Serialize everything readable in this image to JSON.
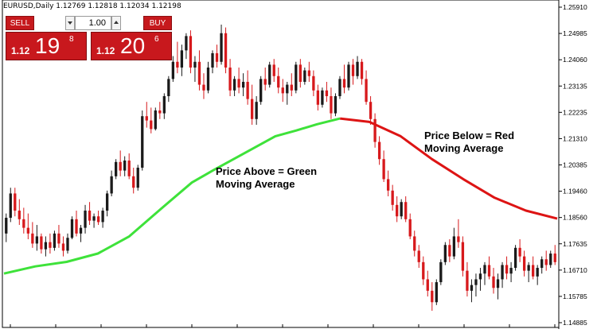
{
  "window": {
    "title": "EURUSD,Daily  1.12769 1.12818 1.12034 1.12198"
  },
  "trade_panel": {
    "sell_label": "SELL",
    "buy_label": "BUY",
    "lot_value": "1.00",
    "sell_price_prefix": "1.12",
    "sell_price_big": "19",
    "sell_price_sup": "8",
    "buy_price_prefix": "1.12",
    "buy_price_big": "20",
    "buy_price_sup": "6",
    "button_color": "#c6191d"
  },
  "annotations": {
    "green_note_line1": "Price Above = Green",
    "green_note_line2": "Moving Average",
    "red_note_line1": "Price Below = Red",
    "red_note_line2": "Moving Average"
  },
  "chart_data": {
    "type": "candlestick",
    "symbol": "EURUSD",
    "timeframe": "Daily",
    "y_ticks": [
      "1.25910",
      "1.24985",
      "1.24060",
      "1.23135",
      "1.22235",
      "1.21310",
      "1.20385",
      "1.19460",
      "1.18560",
      "1.17635",
      "1.16710",
      "1.15785",
      "1.14885"
    ],
    "ylim": [
      1.14885,
      1.2591
    ],
    "colors": {
      "bull": "#1a1a1a",
      "bear": "#d7191c",
      "ma_above": "#3ee23a",
      "ma_below": "#dd1414"
    },
    "moving_average": {
      "points": [
        [
          0,
          1.166
        ],
        [
          15,
          1.1685
        ],
        [
          30,
          1.1701
        ],
        [
          45,
          1.173
        ],
        [
          60,
          1.179
        ],
        [
          75,
          1.1885
        ],
        [
          90,
          1.1978
        ],
        [
          100,
          1.202
        ],
        [
          110,
          1.206
        ],
        [
          120,
          1.21
        ],
        [
          130,
          1.214
        ],
        [
          140,
          1.216
        ],
        [
          150,
          1.2182
        ],
        [
          161,
          1.2202
        ],
        [
          175,
          1.219
        ],
        [
          190,
          1.214
        ],
        [
          205,
          1.206
        ],
        [
          220,
          1.199
        ],
        [
          235,
          1.1925
        ],
        [
          250,
          1.188
        ],
        [
          265,
          1.1852
        ]
      ],
      "crossover_bar": 161
    },
    "candles": [
      [
        1.18,
        1.187,
        1.177,
        1.1855
      ],
      [
        1.1855,
        1.196,
        1.184,
        1.194
      ],
      [
        1.194,
        1.196,
        1.186,
        1.188
      ],
      [
        1.188,
        1.192,
        1.183,
        1.185
      ],
      [
        1.185,
        1.189,
        1.18,
        1.182
      ],
      [
        1.182,
        1.187,
        1.178,
        1.18
      ],
      [
        1.18,
        1.184,
        1.175,
        1.1765
      ],
      [
        1.1765,
        1.183,
        1.174,
        1.179
      ],
      [
        1.179,
        1.18,
        1.173,
        1.1745
      ],
      [
        1.1745,
        1.179,
        1.172,
        1.177
      ],
      [
        1.177,
        1.18,
        1.173,
        1.175
      ],
      [
        1.175,
        1.181,
        1.174,
        1.18
      ],
      [
        1.18,
        1.183,
        1.175,
        1.1765
      ],
      [
        1.1765,
        1.179,
        1.172,
        1.174
      ],
      [
        1.174,
        1.18,
        1.173,
        1.1785
      ],
      [
        1.1785,
        1.186,
        1.178,
        1.185
      ],
      [
        1.185,
        1.188,
        1.179,
        1.18
      ],
      [
        1.18,
        1.183,
        1.177,
        1.182
      ],
      [
        1.182,
        1.19,
        1.18,
        1.188
      ],
      [
        1.188,
        1.191,
        1.183,
        1.1845
      ],
      [
        1.1845,
        1.187,
        1.182,
        1.186
      ],
      [
        1.186,
        1.188,
        1.183,
        1.184
      ],
      [
        1.184,
        1.189,
        1.182,
        1.188
      ],
      [
        1.188,
        1.195,
        1.186,
        1.194
      ],
      [
        1.194,
        1.202,
        1.193,
        1.2
      ],
      [
        1.2,
        1.206,
        1.199,
        1.205
      ],
      [
        1.205,
        1.209,
        1.2,
        1.202
      ],
      [
        1.202,
        1.207,
        1.2,
        1.2055
      ],
      [
        1.2055,
        1.208,
        1.199,
        1.2
      ],
      [
        1.2,
        1.203,
        1.194,
        1.196
      ],
      [
        1.196,
        1.204,
        1.195,
        1.203
      ],
      [
        1.203,
        1.223,
        1.202,
        1.221
      ],
      [
        1.221,
        1.226,
        1.217,
        1.2195
      ],
      [
        1.2195,
        1.224,
        1.215,
        1.2165
      ],
      [
        1.2165,
        1.224,
        1.216,
        1.223
      ],
      [
        1.223,
        1.226,
        1.22,
        1.222
      ],
      [
        1.222,
        1.229,
        1.22,
        1.228
      ],
      [
        1.228,
        1.235,
        1.226,
        1.234
      ],
      [
        1.234,
        1.242,
        1.233,
        1.24
      ],
      [
        1.24,
        1.247,
        1.236,
        1.238
      ],
      [
        1.238,
        1.246,
        1.235,
        1.244
      ],
      [
        1.244,
        1.25,
        1.241,
        1.249
      ],
      [
        1.249,
        1.251,
        1.236,
        1.238
      ],
      [
        1.238,
        1.242,
        1.233,
        1.24
      ],
      [
        1.24,
        1.244,
        1.23,
        1.232
      ],
      [
        1.232,
        1.236,
        1.227,
        1.23
      ],
      [
        1.23,
        1.24,
        1.229,
        1.238
      ],
      [
        1.238,
        1.244,
        1.236,
        1.243
      ],
      [
        1.243,
        1.246,
        1.238,
        1.24
      ],
      [
        1.24,
        1.253,
        1.239,
        1.25
      ],
      [
        1.25,
        1.252,
        1.236,
        1.238
      ],
      [
        1.238,
        1.241,
        1.228,
        1.23
      ],
      [
        1.23,
        1.235,
        1.228,
        1.234
      ],
      [
        1.234,
        1.238,
        1.229,
        1.231
      ],
      [
        1.231,
        1.236,
        1.228,
        1.233
      ],
      [
        1.233,
        1.237,
        1.225,
        1.227
      ],
      [
        1.227,
        1.232,
        1.218,
        1.22
      ],
      [
        1.22,
        1.228,
        1.218,
        1.226
      ],
      [
        1.226,
        1.235,
        1.225,
        1.234
      ],
      [
        1.234,
        1.238,
        1.23,
        1.232
      ],
      [
        1.232,
        1.24,
        1.231,
        1.239
      ],
      [
        1.239,
        1.241,
        1.233,
        1.235
      ],
      [
        1.235,
        1.238,
        1.229,
        1.231
      ],
      [
        1.231,
        1.234,
        1.226,
        1.229
      ],
      [
        1.229,
        1.233,
        1.225,
        1.232
      ],
      [
        1.232,
        1.236,
        1.228,
        1.23
      ],
      [
        1.23,
        1.24,
        1.229,
        1.239
      ],
      [
        1.239,
        1.241,
        1.231,
        1.233
      ],
      [
        1.233,
        1.238,
        1.232,
        1.237
      ],
      [
        1.237,
        1.24,
        1.233,
        1.235
      ],
      [
        1.235,
        1.237,
        1.228,
        1.23
      ],
      [
        1.23,
        1.232,
        1.223,
        1.225
      ],
      [
        1.225,
        1.231,
        1.224,
        1.23
      ],
      [
        1.23,
        1.233,
        1.226,
        1.228
      ],
      [
        1.228,
        1.231,
        1.22,
        1.222
      ],
      [
        1.222,
        1.229,
        1.221,
        1.228
      ],
      [
        1.228,
        1.235,
        1.227,
        1.234
      ],
      [
        1.234,
        1.239,
        1.229,
        1.231
      ],
      [
        1.231,
        1.24,
        1.23,
        1.239
      ],
      [
        1.239,
        1.241,
        1.232,
        1.235
      ],
      [
        1.235,
        1.242,
        1.234,
        1.24
      ],
      [
        1.24,
        1.241,
        1.232,
        1.234
      ],
      [
        1.234,
        1.237,
        1.225,
        1.226
      ],
      [
        1.226,
        1.228,
        1.218,
        1.22
      ],
      [
        1.22,
        1.222,
        1.21,
        1.212
      ],
      [
        1.212,
        1.214,
        1.204,
        1.206
      ],
      [
        1.206,
        1.209,
        1.198,
        1.199
      ],
      [
        1.199,
        1.202,
        1.193,
        1.195
      ],
      [
        1.195,
        1.197,
        1.188,
        1.19
      ],
      [
        1.19,
        1.193,
        1.184,
        1.186
      ],
      [
        1.186,
        1.192,
        1.185,
        1.191
      ],
      [
        1.191,
        1.193,
        1.184,
        1.185
      ],
      [
        1.185,
        1.187,
        1.178,
        1.179
      ],
      [
        1.179,
        1.181,
        1.172,
        1.174
      ],
      [
        1.174,
        1.176,
        1.168,
        1.17
      ],
      [
        1.17,
        1.172,
        1.162,
        1.164
      ],
      [
        1.164,
        1.167,
        1.158,
        1.16
      ],
      [
        1.16,
        1.163,
        1.153,
        1.156
      ],
      [
        1.156,
        1.164,
        1.155,
        1.163
      ],
      [
        1.163,
        1.171,
        1.162,
        1.17
      ],
      [
        1.17,
        1.177,
        1.169,
        1.176
      ],
      [
        1.176,
        1.178,
        1.17,
        1.172
      ],
      [
        1.172,
        1.182,
        1.171,
        1.179
      ],
      [
        1.179,
        1.185,
        1.175,
        1.177
      ],
      [
        1.177,
        1.179,
        1.165,
        1.167
      ],
      [
        1.167,
        1.17,
        1.158,
        1.16
      ],
      [
        1.16,
        1.164,
        1.156,
        1.162
      ],
      [
        1.162,
        1.166,
        1.158,
        1.164
      ],
      [
        1.164,
        1.168,
        1.16,
        1.166
      ],
      [
        1.166,
        1.17,
        1.162,
        1.169
      ],
      [
        1.169,
        1.172,
        1.164,
        1.165
      ],
      [
        1.165,
        1.168,
        1.159,
        1.161
      ],
      [
        1.161,
        1.166,
        1.157,
        1.164
      ],
      [
        1.164,
        1.17,
        1.161,
        1.169
      ],
      [
        1.169,
        1.172,
        1.164,
        1.166
      ],
      [
        1.166,
        1.17,
        1.163,
        1.168
      ],
      [
        1.168,
        1.176,
        1.167,
        1.175
      ],
      [
        1.175,
        1.178,
        1.17,
        1.172
      ],
      [
        1.172,
        1.174,
        1.165,
        1.167
      ],
      [
        1.167,
        1.17,
        1.163,
        1.169
      ],
      [
        1.169,
        1.172,
        1.164,
        1.165
      ],
      [
        1.165,
        1.169,
        1.162,
        1.168
      ],
      [
        1.168,
        1.172,
        1.166,
        1.171
      ],
      [
        1.171,
        1.174,
        1.167,
        1.169
      ],
      [
        1.169,
        1.174,
        1.168,
        1.173
      ],
      [
        1.173,
        1.176,
        1.169,
        1.17
      ]
    ]
  }
}
